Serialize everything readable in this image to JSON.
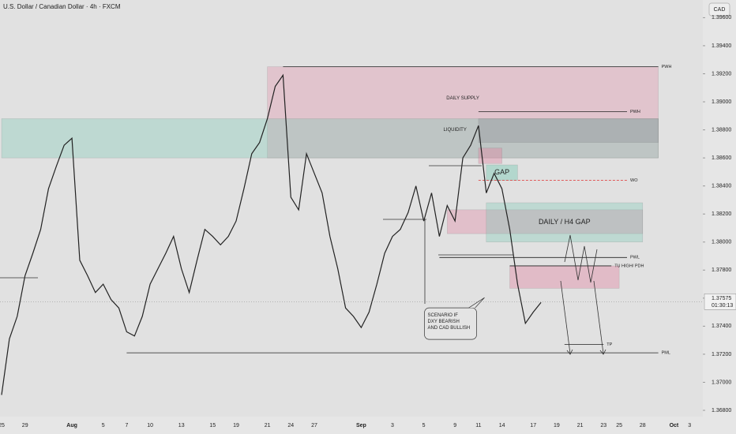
{
  "chart_data": {
    "type": "line",
    "title": "U.S. Dollar / Canadian Dollar · 4h · FXCM",
    "currency": "CAD",
    "categories": [
      "25",
      null,
      null,
      "29",
      null,
      null,
      null,
      null,
      null,
      "Aug",
      null,
      null,
      null,
      "5",
      null,
      null,
      "7",
      null,
      null,
      "10",
      null,
      null,
      null,
      "13",
      null,
      null,
      null,
      "15",
      null,
      null,
      "19",
      null,
      null,
      null,
      "21",
      null,
      null,
      "24",
      null,
      null,
      "27",
      null,
      null,
      null,
      null,
      null,
      "Sep",
      null,
      null,
      null,
      "3",
      null,
      null,
      null,
      "5",
      null,
      null,
      null,
      "9",
      null,
      null,
      "11",
      null,
      null,
      "14",
      null,
      null,
      null,
      "17",
      null,
      null,
      "19",
      null,
      null,
      "21",
      null,
      null,
      "23",
      null,
      "25",
      null,
      null,
      "28",
      null,
      null,
      null,
      "Oct",
      null,
      "3",
      null
    ],
    "series": [
      {
        "color": "#222222",
        "values": [
          1.3691,
          1.3731,
          1.3747,
          1.3776,
          1.3792,
          1.3809,
          1.3838,
          1.3854,
          1.3869,
          1.3874,
          1.3787,
          1.3776,
          1.3764,
          1.377,
          1.3759,
          1.3753,
          1.3736,
          1.3733,
          1.3747,
          1.377,
          1.3781,
          1.3792,
          1.3804,
          1.3781,
          1.3764,
          1.3787,
          1.3809,
          1.3804,
          1.3798,
          1.3804,
          1.3815,
          1.3838,
          1.3863,
          1.3871,
          1.3888,
          1.3911,
          1.3919,
          1.3832,
          1.3823,
          1.3863,
          1.3849,
          1.3835,
          1.3804,
          1.3781,
          1.3753,
          1.3747,
          1.3739,
          1.375,
          1.377,
          1.3792,
          1.3804,
          1.3809,
          1.3821,
          1.384,
          1.3815,
          1.3835,
          1.3804,
          1.3826,
          1.3815,
          1.386,
          1.3869,
          1.3883,
          1.3835,
          1.3849,
          1.3838,
          1.3809,
          1.377,
          1.3742,
          1.375,
          1.3757,
          null,
          null,
          null,
          null,
          null,
          null,
          null,
          null,
          null,
          null,
          null,
          null,
          null,
          null,
          null,
          null,
          null,
          null,
          null,
          null
        ]
      }
    ],
    "ylim": [
      1.36755,
      1.39726
    ],
    "yticks": [
      {
        "value": 1.396,
        "label": "1.39600"
      },
      {
        "value": 1.394,
        "label": "1.39400"
      },
      {
        "value": 1.392,
        "label": "1.39200"
      },
      {
        "value": 1.39,
        "label": "1.39000"
      },
      {
        "value": 1.388,
        "label": "1.38800"
      },
      {
        "value": 1.386,
        "label": "1.38600"
      },
      {
        "value": 1.384,
        "label": "1.38400"
      },
      {
        "value": 1.382,
        "label": "1.38200"
      },
      {
        "value": 1.38,
        "label": "1.38000"
      },
      {
        "value": 1.378,
        "label": "1.37800"
      },
      {
        "value": 1.376,
        "label": "1.37600"
      },
      {
        "value": 1.374,
        "label": "1.37400"
      },
      {
        "value": 1.372,
        "label": "1.37200"
      },
      {
        "value": 1.37,
        "label": "1.37000"
      },
      {
        "value": 1.368,
        "label": "1.36800"
      }
    ],
    "last_price": 1.37575,
    "countdown": "01:30:13",
    "zones": [
      {
        "label": "DAILY SUPPLY",
        "ylim": [
          1.386,
          1.3925
        ],
        "xrange": [
          34,
          84
        ],
        "color": "rgba(226,130,160,0.30)"
      },
      {
        "ylim": [
          1.386,
          1.3888
        ],
        "xrange": [
          0,
          84
        ],
        "color": "rgba(110,200,175,0.30)"
      },
      {
        "ylim": [
          1.3871,
          1.3888
        ],
        "xrange": [
          61,
          84
        ],
        "color": "rgba(110,110,120,0.22)"
      },
      {
        "ylim": [
          1.3856,
          1.3867
        ],
        "xrange": [
          61,
          64
        ],
        "color": "rgba(226,130,160,0.40)"
      },
      {
        "label": "GAP",
        "ylim": [
          1.3844,
          1.3855
        ],
        "xrange": [
          62,
          66
        ],
        "color": "rgba(110,200,175,0.40)"
      },
      {
        "ylim": [
          1.3806,
          1.3823
        ],
        "xrange": [
          57,
          82
        ],
        "color": "rgba(226,130,160,0.35)"
      },
      {
        "label": "DAILY / H4 GAP",
        "ylim": [
          1.38,
          1.3828
        ],
        "xrange": [
          62,
          82
        ],
        "color": "rgba(110,200,175,0.30)"
      },
      {
        "ylim": [
          1.3767,
          1.3783
        ],
        "xrange": [
          65,
          79
        ],
        "color": "rgba(226,130,160,0.40)"
      }
    ],
    "levels": [
      {
        "label": "PWH",
        "value": 1.3925,
        "xrange": [
          36,
          84
        ]
      },
      {
        "label": "PWH",
        "value": 1.3893,
        "xrange": [
          61,
          80
        ]
      },
      {
        "label": "WO",
        "value": 1.3844,
        "xrange": [
          61,
          80
        ],
        "dashed": true,
        "color": "#e04a4a"
      },
      {
        "label": "PWL",
        "value": 1.3789,
        "xrange": [
          56,
          80
        ]
      },
      {
        "label": "TU HIGH/ PDH",
        "value": 1.3783,
        "xrange": [
          65,
          78
        ]
      },
      {
        "label": "TP",
        "value": 1.3727,
        "xrange": [
          72,
          77
        ]
      },
      {
        "label": "PML",
        "value": 1.3721,
        "xrange": [
          16,
          84
        ]
      }
    ],
    "annotations": [
      {
        "text": "LIQUIDITY",
        "x": 58,
        "y": 1.388
      },
      {
        "text": "SCENARIO IF\nDXY BEARISH\nAND CAD BULLISH",
        "x": 54.5,
        "y": 1.3748,
        "callout": true
      }
    ]
  }
}
